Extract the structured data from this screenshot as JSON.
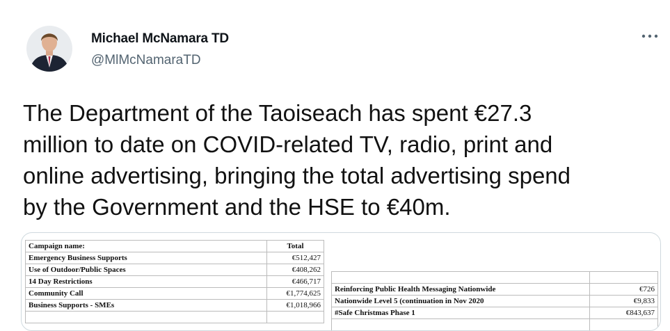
{
  "author": {
    "name": "Michael McNamara TD",
    "handle": "@MlMcNamaraTD"
  },
  "tweet": {
    "lines": [
      "The Department of the Taoiseach has spent €27.3",
      "million to date on COVID-related TV, radio, print and",
      "online advertising, bringing the total advertising spend",
      "by the Government and the HSE to €40m."
    ]
  },
  "media": {
    "left_table": {
      "header": [
        "Campaign name:",
        "Total"
      ],
      "rows": [
        [
          "Emergency Business Supports",
          "€512,427"
        ],
        [
          "Use of Outdoor/Public Spaces",
          "€408,262"
        ],
        [
          "14 Day Restrictions",
          "€466,717"
        ],
        [
          "Community Call",
          "€1,774,625"
        ],
        [
          "Business Supports - SMEs",
          "€1,018,966"
        ]
      ]
    },
    "right_table": {
      "rows": [
        [
          "Reinforcing Public Health Messaging Nationwide",
          "€726"
        ],
        [
          "Nationwide Level 5 (continuation in Nov 2020",
          "€9,833"
        ],
        [
          "#Safe Christmas Phase 1",
          "€843,637"
        ]
      ]
    }
  }
}
